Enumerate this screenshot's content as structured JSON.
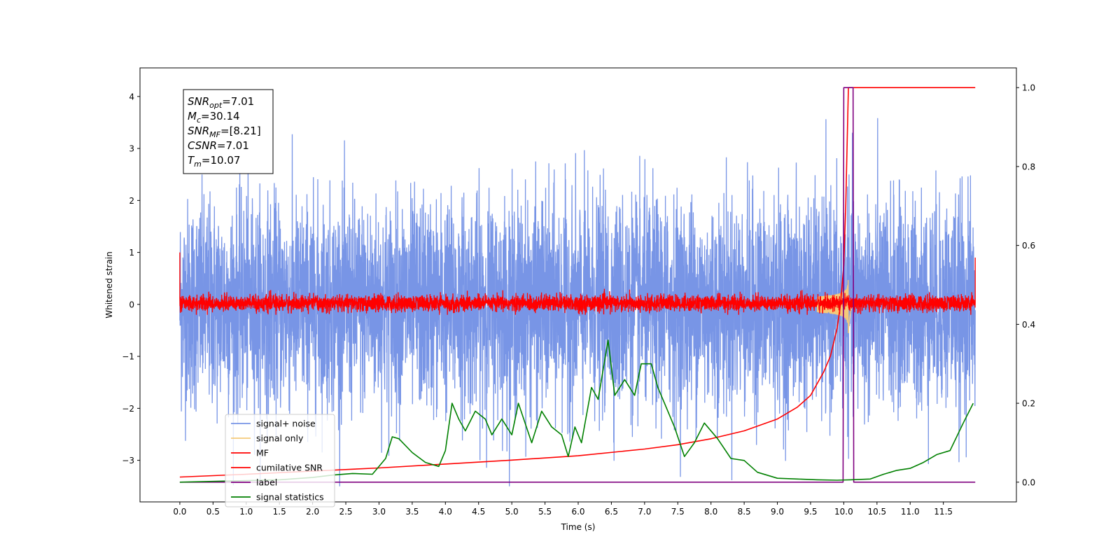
{
  "chart_data": {
    "type": "line",
    "xlabel": "Time (s)",
    "ylabel": "Whitened strain",
    "xlim": [
      -0.6,
      12.6
    ],
    "ylim": [
      -3.8,
      4.55
    ],
    "y2lim": [
      -0.05,
      1.05
    ],
    "xticks": [
      0.0,
      0.5,
      1.0,
      1.5,
      2.0,
      2.5,
      3.0,
      3.5,
      4.0,
      4.5,
      5.0,
      5.5,
      6.0,
      6.5,
      7.0,
      7.5,
      8.0,
      8.5,
      9.0,
      9.5,
      10.0,
      10.5,
      11.0,
      11.5
    ],
    "xtick_labels": [
      "0.0",
      "0.5",
      "1.0",
      "1.5",
      "2.0",
      "2.5",
      "3.0",
      "3.5",
      "4.0",
      "4.5",
      "5.0",
      "5.5",
      "6.0",
      "6.5",
      "7.0",
      "7.5",
      "8.0",
      "8.5",
      "9.0",
      "9.5",
      "10.0",
      "10.5",
      "11.0",
      "11.5"
    ],
    "yticks": [
      -3,
      -2,
      -1,
      0,
      1,
      2,
      3,
      4
    ],
    "ytick_labels": [
      "−3",
      "−2",
      "−1",
      "0",
      "1",
      "2",
      "3",
      "4"
    ],
    "y2ticks": [
      0.0,
      0.2,
      0.4,
      0.6,
      0.8,
      1.0
    ],
    "y2tick_labels": [
      "0.0",
      "0.2",
      "0.4",
      "0.6",
      "0.8",
      "1.0"
    ],
    "grid": false,
    "legend_position": "lower-left",
    "stats_box": {
      "lines": [
        {
          "sym": "SNR",
          "sub": "opt",
          "val": "=7.01"
        },
        {
          "sym": "M",
          "sub": "c",
          "val": "=30.14"
        },
        {
          "sym": "SNR",
          "sub": "MF",
          "val": "=[8.21]"
        },
        {
          "sym": "CSNR",
          "sub": "",
          "val": "=7.01"
        },
        {
          "sym": "T",
          "sub": "m",
          "val": "=10.07"
        }
      ]
    },
    "series": [
      {
        "name": "signal+ noise",
        "axis": "left",
        "color": "#7895e6",
        "style": "noise",
        "t_start": 0.0,
        "t_end": 11.98,
        "envelope": [
          -3.5,
          4.2
        ]
      },
      {
        "name": "signal only",
        "axis": "left",
        "color": "#f5c97a",
        "style": "chirp",
        "merger_time": 10.07,
        "peak_amplitude": 0.55
      },
      {
        "name": "MF",
        "axis": "left",
        "color": "#ff0000",
        "style": "noise",
        "t_start": 0.0,
        "t_end": 11.98,
        "envelope": [
          -0.2,
          0.3
        ],
        "start_value": 1.0,
        "end_value": 0.9
      },
      {
        "name": "cumilative SNR",
        "axis": "right",
        "color": "#ff0000",
        "x": [
          0.0,
          1.0,
          2.0,
          3.0,
          4.0,
          5.0,
          6.0,
          7.0,
          7.5,
          8.0,
          8.5,
          9.0,
          9.3,
          9.5,
          9.7,
          9.8,
          9.9,
          9.95,
          10.0,
          10.03,
          10.05,
          10.07,
          11.98
        ],
        "y": [
          0.013,
          0.02,
          0.028,
          0.036,
          0.046,
          0.056,
          0.067,
          0.084,
          0.095,
          0.11,
          0.13,
          0.16,
          0.19,
          0.22,
          0.28,
          0.32,
          0.39,
          0.45,
          0.55,
          0.7,
          0.85,
          1.0,
          1.0
        ]
      },
      {
        "name": "label",
        "axis": "right",
        "color": "#800080",
        "x": [
          0.0,
          9.99,
          10.0,
          10.07,
          10.14,
          10.15,
          11.98
        ],
        "y": [
          0.0,
          0.0,
          1.0,
          1.0,
          1.0,
          0.0,
          0.0
        ]
      },
      {
        "name": "signal statistics",
        "axis": "right",
        "color": "#008000",
        "x": [
          0.0,
          0.5,
          1.0,
          1.5,
          2.0,
          2.3,
          2.6,
          2.9,
          3.1,
          3.2,
          3.3,
          3.5,
          3.7,
          3.9,
          4.0,
          4.1,
          4.2,
          4.3,
          4.45,
          4.6,
          4.7,
          4.85,
          5.0,
          5.1,
          5.3,
          5.45,
          5.6,
          5.75,
          5.85,
          5.95,
          6.05,
          6.2,
          6.3,
          6.45,
          6.55,
          6.7,
          6.85,
          6.95,
          7.1,
          7.2,
          7.3,
          7.45,
          7.6,
          7.75,
          7.9,
          8.1,
          8.3,
          8.5,
          8.7,
          9.0,
          9.3,
          9.6,
          9.9,
          10.1,
          10.4,
          10.6,
          10.8,
          11.0,
          11.2,
          11.4,
          11.6,
          11.8,
          11.95
        ],
        "y": [
          0.0,
          0.002,
          0.004,
          0.006,
          0.012,
          0.018,
          0.022,
          0.02,
          0.06,
          0.115,
          0.11,
          0.075,
          0.05,
          0.04,
          0.08,
          0.2,
          0.16,
          0.13,
          0.18,
          0.16,
          0.12,
          0.16,
          0.12,
          0.2,
          0.1,
          0.18,
          0.14,
          0.12,
          0.065,
          0.14,
          0.1,
          0.24,
          0.21,
          0.36,
          0.22,
          0.26,
          0.22,
          0.3,
          0.3,
          0.24,
          0.2,
          0.14,
          0.065,
          0.1,
          0.15,
          0.11,
          0.06,
          0.055,
          0.025,
          0.01,
          0.008,
          0.006,
          0.005,
          0.006,
          0.008,
          0.02,
          0.03,
          0.035,
          0.05,
          0.07,
          0.08,
          0.15,
          0.2
        ]
      }
    ]
  }
}
